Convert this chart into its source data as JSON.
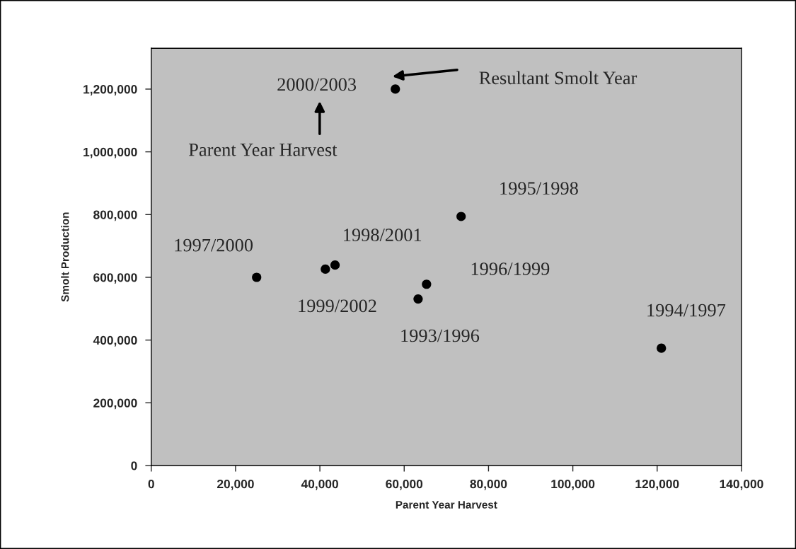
{
  "chart_data": {
    "type": "scatter",
    "xlabel": "Parent Year Harvest",
    "ylabel": "Smolt Production",
    "x": [
      25000,
      41300,
      43600,
      63300,
      65300,
      57900,
      73500,
      121000
    ],
    "series": [
      {
        "color": "#000000",
        "values": [
          600000,
          626000,
          639000,
          531000,
          578000,
          1200000,
          794000,
          374000
        ]
      }
    ],
    "annotations": [
      {
        "text": "1997/2000",
        "x": 25000,
        "y": 600000
      },
      {
        "text": "1999/2002",
        "x": 41300,
        "y": 626000
      },
      {
        "text": "1998/2001",
        "x": 43600,
        "y": 639000
      },
      {
        "text": "1993/1996",
        "x": 63300,
        "y": 531000
      },
      {
        "text": "1996/1999",
        "x": 65300,
        "y": 578000
      },
      {
        "text": "2000/2003",
        "x": 57900,
        "y": 1200000
      },
      {
        "text": "1995/1998",
        "x": 73500,
        "y": 794000
      },
      {
        "text": "1994/1997",
        "x": 121000,
        "y": 374000
      },
      "Resultant Smolt Year",
      "Parent Year Harvest"
    ],
    "xlim": [
      0,
      140000
    ],
    "xticks": [
      {
        "value": 0,
        "label": "0"
      },
      {
        "value": 20000,
        "label": "20,000"
      },
      {
        "value": 40000,
        "label": "40,000"
      },
      {
        "value": 60000,
        "label": "60,000"
      },
      {
        "value": 80000,
        "label": "80,000"
      },
      {
        "value": 100000,
        "label": "100,000"
      },
      {
        "value": 120000,
        "label": "120,000"
      },
      {
        "value": 140000,
        "label": "140,000"
      }
    ],
    "ylim": [
      0,
      1330000
    ],
    "yticks": [
      {
        "value": 0,
        "label": "0"
      },
      {
        "value": 200000,
        "label": "200,000"
      },
      {
        "value": 400000,
        "label": "400,000"
      },
      {
        "value": 600000,
        "label": "600,000"
      },
      {
        "value": 800000,
        "label": "800,000"
      },
      {
        "value": 1000000,
        "label": "1,000,000"
      },
      {
        "value": 1200000,
        "label": "1,200,000"
      }
    ],
    "marker": "circle",
    "grid": false
  }
}
